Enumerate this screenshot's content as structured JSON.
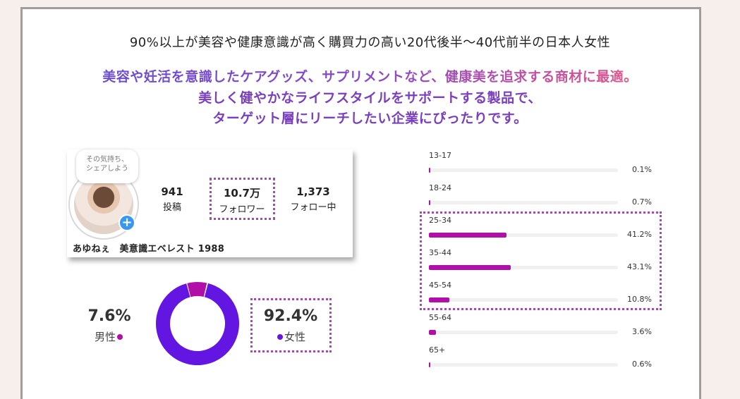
{
  "headline": "90%以上が美容や健康意識が高く購買力の高い20代後半〜40代前半の日本人女性",
  "tagline": [
    "美容や妊活を意識したケアグッズ、サプリメントなど、健康美を追求する商材に最適。",
    "美しく健やかなライフスタイルをサポートする製品で、",
    "ターゲット層にリーチしたい企業にぴったりです。"
  ],
  "profile": {
    "bubble_text": [
      "その気持ち、",
      "シェアしよう"
    ],
    "posts_count": "941",
    "posts_label": "投稿",
    "followers_count": "10.7万",
    "followers_label": "フォロワー",
    "following_count": "1,373",
    "following_label": "フォロー中",
    "username": "あゆねぇ　美意識エベレスト 1988"
  },
  "gender": {
    "male_pct": "7.6%",
    "male_label": "男性",
    "female_pct": "92.4%",
    "female_label": "女性",
    "male_value": 7.6,
    "female_value": 92.4,
    "male_color": "#b10fa8",
    "female_color": "#6316e2"
  },
  "age_distribution": {
    "bar_color": "#b10fa8",
    "groups": [
      {
        "label": "13-17",
        "pct": "0.1%",
        "value": 0.1
      },
      {
        "label": "18-24",
        "pct": "0.7%",
        "value": 0.7
      },
      {
        "label": "25-34",
        "pct": "41.2%",
        "value": 41.2
      },
      {
        "label": "35-44",
        "pct": "43.1%",
        "value": 43.1
      },
      {
        "label": "45-54",
        "pct": "10.8%",
        "value": 10.8
      },
      {
        "label": "55-64",
        "pct": "3.6%",
        "value": 3.6
      },
      {
        "label": "65+",
        "pct": "0.6%",
        "value": 0.6
      }
    ]
  }
}
